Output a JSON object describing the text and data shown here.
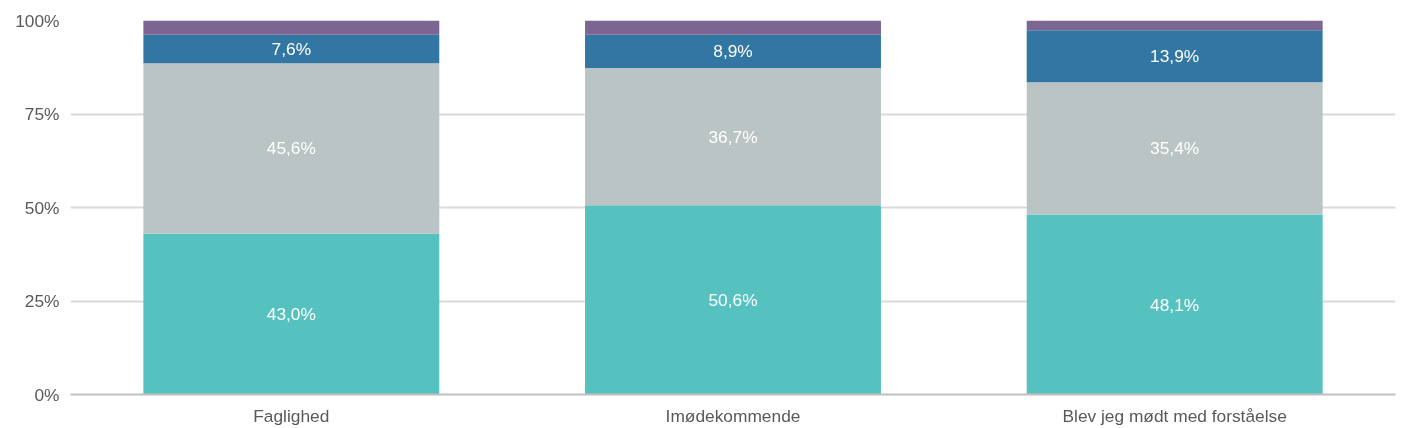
{
  "chart_data": {
    "type": "bar",
    "stacked": true,
    "categories": [
      "Faglighed",
      "Imødekommende",
      "Blev jeg mødt med forståelse"
    ],
    "series": [
      {
        "color": "#56c2bf",
        "values": [
          43.0,
          50.6,
          48.1
        ],
        "value_labels": [
          "43,0%",
          "50,6%",
          "48,1%"
        ]
      },
      {
        "color": "#bac4c5",
        "values": [
          45.6,
          36.7,
          35.4
        ],
        "value_labels": [
          "45,6%",
          "36,7%",
          "35,4%"
        ]
      },
      {
        "color": "#3276a4",
        "values": [
          7.6,
          8.9,
          13.9
        ],
        "value_labels": [
          "7,6%",
          "8,9%",
          "13,9%"
        ]
      },
      {
        "color": "#7b6592",
        "values": [
          3.8,
          3.8,
          2.6
        ],
        "value_labels": [
          null,
          null,
          null
        ]
      }
    ],
    "ylim": [
      0,
      100
    ],
    "yticks": [
      {
        "value": 0,
        "label": "0%"
      },
      {
        "value": 25,
        "label": "25%"
      },
      {
        "value": 50,
        "label": "50%"
      },
      {
        "value": 75,
        "label": "75%"
      },
      {
        "value": 100,
        "label": "100%"
      }
    ],
    "grid": "y"
  }
}
